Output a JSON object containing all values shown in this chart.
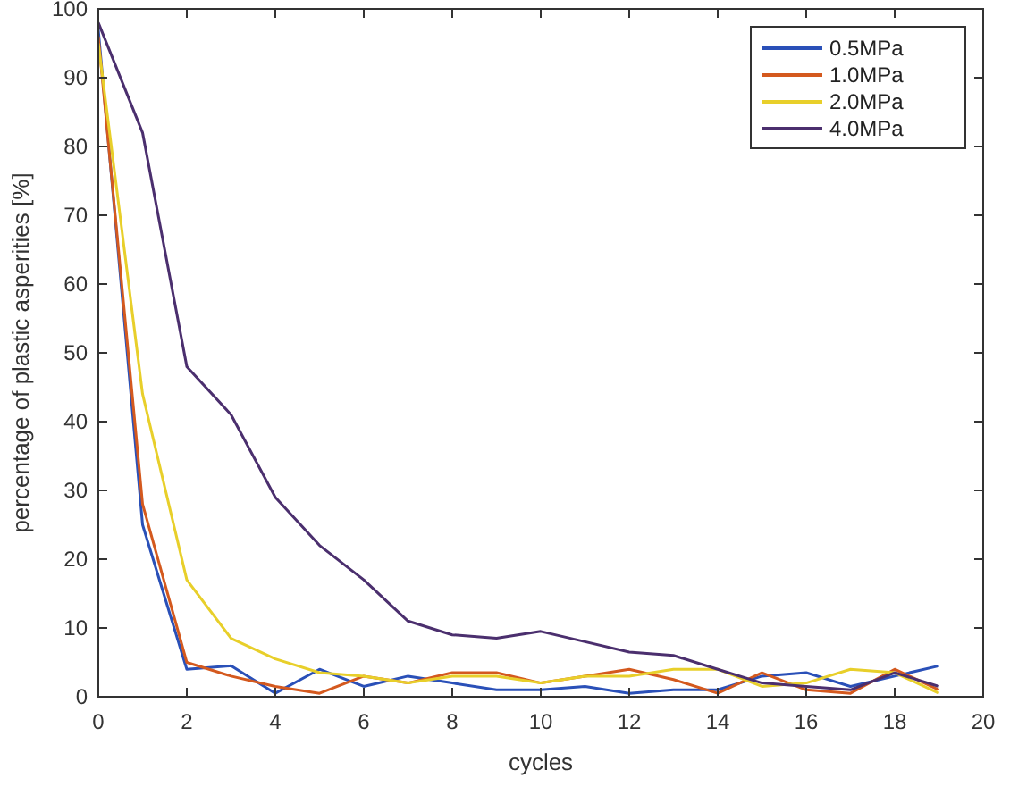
{
  "chart_data": {
    "type": "line",
    "xlabel": "cycles",
    "ylabel": "percentage of plastic asperities [%]",
    "x": [
      0,
      1,
      2,
      3,
      4,
      5,
      6,
      7,
      8,
      9,
      10,
      11,
      12,
      13,
      14,
      15,
      16,
      17,
      18,
      19
    ],
    "xlim": [
      0,
      20
    ],
    "xticks": [
      0,
      2,
      4,
      6,
      8,
      10,
      12,
      14,
      16,
      18,
      20
    ],
    "ylim": [
      0,
      100
    ],
    "yticks": [
      0,
      10,
      20,
      30,
      40,
      50,
      60,
      70,
      80,
      90,
      100
    ],
    "legend": "top right",
    "grid": false,
    "marker": "none",
    "line_style": "solid",
    "series": [
      {
        "name": "0.5MPa",
        "color": "#2a50b8",
        "values": [
          97,
          25,
          4,
          4.5,
          0.5,
          4,
          1.5,
          3,
          2,
          1,
          1,
          1.5,
          0.5,
          1,
          1,
          3,
          3.5,
          1.5,
          3,
          4.5
        ]
      },
      {
        "name": "1.0MPa",
        "color": "#d4591e",
        "values": [
          96,
          28,
          5,
          3,
          1.5,
          0.5,
          3,
          2,
          3.5,
          3.5,
          2,
          3,
          4,
          2.5,
          0.5,
          3.5,
          1,
          0.5,
          4,
          1
        ]
      },
      {
        "name": "2.0MPa",
        "color": "#e8cf2a",
        "values": [
          95,
          44,
          17,
          8.5,
          5.5,
          3.5,
          3,
          2,
          3,
          3,
          2,
          3,
          3,
          4,
          4,
          1.5,
          2,
          4,
          3.5,
          0.5
        ]
      },
      {
        "name": "4.0MPa",
        "color": "#4b2f6e",
        "values": [
          98,
          82,
          48,
          41,
          29,
          22,
          17,
          11,
          9,
          8.5,
          9.5,
          8,
          6.5,
          6,
          4,
          2,
          1.5,
          1,
          3.5,
          1.5
        ]
      }
    ]
  }
}
